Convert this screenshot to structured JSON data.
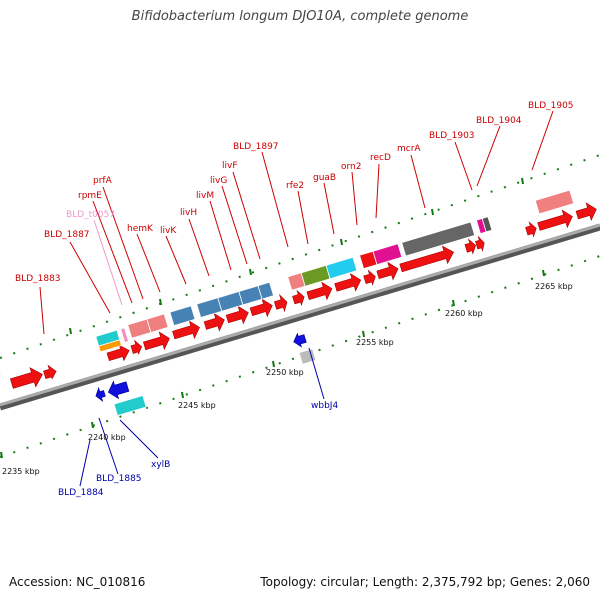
{
  "title": "Bifidobacterium longum DJO10A, complete genome",
  "footer": {
    "accession": "Accession: NC_010816",
    "topology": "Topology: circular; Length: 2,375,792 bp; Genes: 2,060"
  },
  "scale_labels": [
    "2235 kbp",
    "2240 kbp",
    "2245 kbp",
    "2250 kbp",
    "2255 kbp",
    "2260 kbp",
    "2265 kbp"
  ],
  "gene_labels_top": [
    "BLD_1883",
    "BLD_1887",
    "BLD_t0057",
    "rpmE",
    "prfA",
    "hemK",
    "livK",
    "livH",
    "livM",
    "livG",
    "livF",
    "BLD_1897",
    "rfe2",
    "guaB",
    "orn2",
    "recD",
    "mcrA",
    "BLD_1903",
    "BLD_1904",
    "BLD_1905"
  ],
  "gene_labels_bottom": [
    "BLD_1884",
    "BLD_1885",
    "xylB",
    "wbbJ4"
  ],
  "colors": {
    "forward_gene": "#ee1111",
    "reverse_gene": "#1111dd",
    "top_label": "#cc0000",
    "bottom_label": "#0000aa",
    "trna_label": "#ee99cc",
    "backbone": "#888888",
    "tick": "#117711"
  }
}
